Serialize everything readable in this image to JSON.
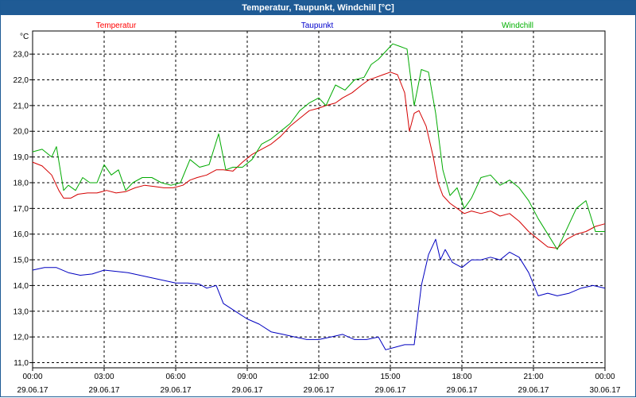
{
  "window": {
    "title": "Temperatur, Taupunkt, Windchill [°C]"
  },
  "chart_data": {
    "type": "line",
    "title": "Temperatur, Taupunkt, Windchill [°C]",
    "ylabel": "°C",
    "xlabel": "",
    "ylim": [
      10.8,
      23.9
    ],
    "xlim": [
      0,
      24
    ],
    "grid": true,
    "legend_placement": "top",
    "y_ticks": [
      11.0,
      12.0,
      13.0,
      14.0,
      15.0,
      16.0,
      17.0,
      18.0,
      19.0,
      20.0,
      21.0,
      22.0,
      23.0
    ],
    "y_tick_labels": [
      "11,0",
      "12,0",
      "13,0",
      "14,0",
      "15,0",
      "16,0",
      "17,0",
      "18,0",
      "19,0",
      "20,0",
      "21,0",
      "22,0",
      "23,0"
    ],
    "x_ticks": [
      0,
      3,
      6,
      9,
      12,
      15,
      18,
      21,
      24
    ],
    "x_tick_times": [
      "00:00",
      "03:00",
      "06:00",
      "09:00",
      "12:00",
      "15:00",
      "18:00",
      "21:00",
      "00:00"
    ],
    "x_tick_dates": [
      "29.06.17",
      "29.06.17",
      "29.06.17",
      "29.06.17",
      "29.06.17",
      "29.06.17",
      "29.06.17",
      "29.06.17",
      "30.06.17"
    ],
    "series": [
      {
        "name": "Temperatur",
        "color": "#ff0000",
        "line_color": "#d40000",
        "x": [
          0,
          0.4,
          0.8,
          1.1,
          1.3,
          1.6,
          1.9,
          2.3,
          2.7,
          3.1,
          3.5,
          3.9,
          4.3,
          4.7,
          5.1,
          5.5,
          5.9,
          6.3,
          6.6,
          6.9,
          7.3,
          7.7,
          8.0,
          8.4,
          8.8,
          9.2,
          9.6,
          10.0,
          10.4,
          10.8,
          11.2,
          11.6,
          12.0,
          12.3,
          12.7,
          13.0,
          13.4,
          13.8,
          14.1,
          14.4,
          14.7,
          15.0,
          15.3,
          15.6,
          15.8,
          16.0,
          16.2,
          16.5,
          16.8,
          17.0,
          17.2,
          17.5,
          17.8,
          18.1,
          18.4,
          18.8,
          19.2,
          19.6,
          20.0,
          20.4,
          20.8,
          21.2,
          21.6,
          22.0,
          22.4,
          22.8,
          23.2,
          23.6,
          24.0
        ],
        "values": [
          18.8,
          18.65,
          18.3,
          17.7,
          17.4,
          17.4,
          17.55,
          17.6,
          17.6,
          17.7,
          17.6,
          17.65,
          17.8,
          17.9,
          17.85,
          17.8,
          17.8,
          17.9,
          18.1,
          18.2,
          18.3,
          18.5,
          18.5,
          18.45,
          18.8,
          19.1,
          19.3,
          19.5,
          19.8,
          20.2,
          20.5,
          20.8,
          20.9,
          21.0,
          21.1,
          21.3,
          21.5,
          21.8,
          22.0,
          22.1,
          22.2,
          22.3,
          22.2,
          21.5,
          20.0,
          20.7,
          20.8,
          20.2,
          19.0,
          18.0,
          17.5,
          17.2,
          17.0,
          16.8,
          16.9,
          16.8,
          16.9,
          16.7,
          16.8,
          16.5,
          16.1,
          15.8,
          15.5,
          15.45,
          15.8,
          16.0,
          16.1,
          16.3,
          16.4
        ]
      },
      {
        "name": "Taupunkt",
        "color": "#0000cc",
        "line_color": "#0000c0",
        "x": [
          0,
          0.5,
          1.0,
          1.5,
          2.0,
          2.5,
          3.0,
          3.5,
          4.0,
          4.5,
          5.0,
          5.5,
          6.0,
          6.5,
          7.0,
          7.3,
          7.7,
          8.0,
          8.5,
          9.0,
          9.5,
          10.0,
          10.5,
          11.0,
          11.5,
          12.0,
          12.5,
          13.0,
          13.5,
          14.0,
          14.5,
          14.8,
          15.2,
          15.6,
          16.0,
          16.3,
          16.6,
          16.9,
          17.1,
          17.3,
          17.6,
          18.0,
          18.4,
          18.8,
          19.2,
          19.6,
          20.0,
          20.4,
          20.8,
          21.2,
          21.6,
          22.0,
          22.5,
          23.0,
          23.5,
          24.0
        ],
        "values": [
          14.6,
          14.7,
          14.7,
          14.5,
          14.4,
          14.45,
          14.6,
          14.55,
          14.5,
          14.4,
          14.3,
          14.2,
          14.1,
          14.1,
          14.05,
          13.9,
          14.0,
          13.3,
          13.0,
          12.7,
          12.5,
          12.2,
          12.1,
          12.0,
          11.9,
          11.9,
          12.0,
          12.1,
          11.9,
          11.9,
          12.0,
          11.5,
          11.6,
          11.7,
          11.7,
          14.0,
          15.2,
          15.8,
          15.0,
          15.4,
          14.9,
          14.7,
          15.0,
          15.0,
          15.1,
          15.0,
          15.3,
          15.1,
          14.5,
          13.6,
          13.7,
          13.6,
          13.7,
          13.9,
          14.0,
          13.9
        ]
      },
      {
        "name": "Windchill",
        "color": "#00b000",
        "line_color": "#00aa00",
        "x": [
          0,
          0.4,
          0.8,
          1.0,
          1.3,
          1.5,
          1.8,
          2.1,
          2.4,
          2.7,
          3.0,
          3.3,
          3.6,
          3.9,
          4.2,
          4.6,
          5.0,
          5.4,
          5.8,
          6.2,
          6.6,
          7.0,
          7.4,
          7.8,
          8.1,
          8.4,
          8.8,
          9.2,
          9.6,
          10.0,
          10.4,
          10.8,
          11.2,
          11.6,
          12.0,
          12.3,
          12.7,
          13.1,
          13.5,
          13.9,
          14.2,
          14.5,
          14.8,
          15.1,
          15.4,
          15.7,
          16.0,
          16.3,
          16.6,
          16.9,
          17.2,
          17.5,
          17.8,
          18.1,
          18.4,
          18.8,
          19.2,
          19.6,
          20.0,
          20.4,
          20.8,
          21.2,
          21.6,
          22.0,
          22.4,
          22.8,
          23.2,
          23.6,
          24.0
        ],
        "values": [
          19.2,
          19.3,
          19.0,
          19.4,
          17.7,
          17.9,
          17.7,
          18.2,
          18.0,
          18.0,
          18.7,
          18.3,
          18.5,
          17.7,
          18.0,
          18.2,
          18.2,
          18.0,
          17.9,
          18.0,
          18.9,
          18.6,
          18.7,
          19.9,
          18.5,
          18.6,
          18.6,
          18.9,
          19.5,
          19.7,
          20.0,
          20.3,
          20.8,
          21.1,
          21.3,
          21.0,
          21.8,
          21.6,
          22.0,
          22.1,
          22.6,
          22.8,
          23.1,
          23.4,
          23.3,
          23.2,
          21.0,
          22.4,
          22.3,
          20.7,
          18.5,
          17.5,
          17.8,
          17.0,
          17.4,
          18.2,
          18.3,
          17.9,
          18.1,
          17.8,
          17.3,
          16.6,
          16.0,
          15.4,
          16.2,
          17.0,
          17.3,
          16.1,
          16.1
        ]
      }
    ]
  }
}
